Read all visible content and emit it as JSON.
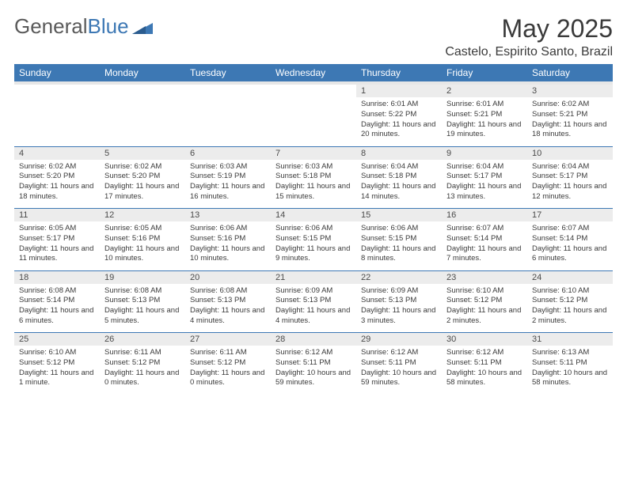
{
  "logo": {
    "text_gray": "General",
    "text_blue": "Blue"
  },
  "title": "May 2025",
  "location": "Castelo, Espirito Santo, Brazil",
  "colors": {
    "header_bg": "#3d78b4",
    "header_text": "#ffffff",
    "daynum_bg": "#ececec",
    "border": "#3d78b4",
    "body_text": "#3a3a3a",
    "logo_gray": "#5a5a5a",
    "logo_blue": "#3d78b4",
    "page_bg": "#ffffff"
  },
  "daynames": [
    "Sunday",
    "Monday",
    "Tuesday",
    "Wednesday",
    "Thursday",
    "Friday",
    "Saturday"
  ],
  "weeks": [
    {
      "nums": [
        "",
        "",
        "",
        "",
        "1",
        "2",
        "3"
      ],
      "details": [
        "",
        "",
        "",
        "",
        "Sunrise: 6:01 AM\nSunset: 5:22 PM\nDaylight: 11 hours and 20 minutes.",
        "Sunrise: 6:01 AM\nSunset: 5:21 PM\nDaylight: 11 hours and 19 minutes.",
        "Sunrise: 6:02 AM\nSunset: 5:21 PM\nDaylight: 11 hours and 18 minutes."
      ]
    },
    {
      "nums": [
        "4",
        "5",
        "6",
        "7",
        "8",
        "9",
        "10"
      ],
      "details": [
        "Sunrise: 6:02 AM\nSunset: 5:20 PM\nDaylight: 11 hours and 18 minutes.",
        "Sunrise: 6:02 AM\nSunset: 5:20 PM\nDaylight: 11 hours and 17 minutes.",
        "Sunrise: 6:03 AM\nSunset: 5:19 PM\nDaylight: 11 hours and 16 minutes.",
        "Sunrise: 6:03 AM\nSunset: 5:18 PM\nDaylight: 11 hours and 15 minutes.",
        "Sunrise: 6:04 AM\nSunset: 5:18 PM\nDaylight: 11 hours and 14 minutes.",
        "Sunrise: 6:04 AM\nSunset: 5:17 PM\nDaylight: 11 hours and 13 minutes.",
        "Sunrise: 6:04 AM\nSunset: 5:17 PM\nDaylight: 11 hours and 12 minutes."
      ]
    },
    {
      "nums": [
        "11",
        "12",
        "13",
        "14",
        "15",
        "16",
        "17"
      ],
      "details": [
        "Sunrise: 6:05 AM\nSunset: 5:17 PM\nDaylight: 11 hours and 11 minutes.",
        "Sunrise: 6:05 AM\nSunset: 5:16 PM\nDaylight: 11 hours and 10 minutes.",
        "Sunrise: 6:06 AM\nSunset: 5:16 PM\nDaylight: 11 hours and 10 minutes.",
        "Sunrise: 6:06 AM\nSunset: 5:15 PM\nDaylight: 11 hours and 9 minutes.",
        "Sunrise: 6:06 AM\nSunset: 5:15 PM\nDaylight: 11 hours and 8 minutes.",
        "Sunrise: 6:07 AM\nSunset: 5:14 PM\nDaylight: 11 hours and 7 minutes.",
        "Sunrise: 6:07 AM\nSunset: 5:14 PM\nDaylight: 11 hours and 6 minutes."
      ]
    },
    {
      "nums": [
        "18",
        "19",
        "20",
        "21",
        "22",
        "23",
        "24"
      ],
      "details": [
        "Sunrise: 6:08 AM\nSunset: 5:14 PM\nDaylight: 11 hours and 6 minutes.",
        "Sunrise: 6:08 AM\nSunset: 5:13 PM\nDaylight: 11 hours and 5 minutes.",
        "Sunrise: 6:08 AM\nSunset: 5:13 PM\nDaylight: 11 hours and 4 minutes.",
        "Sunrise: 6:09 AM\nSunset: 5:13 PM\nDaylight: 11 hours and 4 minutes.",
        "Sunrise: 6:09 AM\nSunset: 5:13 PM\nDaylight: 11 hours and 3 minutes.",
        "Sunrise: 6:10 AM\nSunset: 5:12 PM\nDaylight: 11 hours and 2 minutes.",
        "Sunrise: 6:10 AM\nSunset: 5:12 PM\nDaylight: 11 hours and 2 minutes."
      ]
    },
    {
      "nums": [
        "25",
        "26",
        "27",
        "28",
        "29",
        "30",
        "31"
      ],
      "details": [
        "Sunrise: 6:10 AM\nSunset: 5:12 PM\nDaylight: 11 hours and 1 minute.",
        "Sunrise: 6:11 AM\nSunset: 5:12 PM\nDaylight: 11 hours and 0 minutes.",
        "Sunrise: 6:11 AM\nSunset: 5:12 PM\nDaylight: 11 hours and 0 minutes.",
        "Sunrise: 6:12 AM\nSunset: 5:11 PM\nDaylight: 10 hours and 59 minutes.",
        "Sunrise: 6:12 AM\nSunset: 5:11 PM\nDaylight: 10 hours and 59 minutes.",
        "Sunrise: 6:12 AM\nSunset: 5:11 PM\nDaylight: 10 hours and 58 minutes.",
        "Sunrise: 6:13 AM\nSunset: 5:11 PM\nDaylight: 10 hours and 58 minutes."
      ]
    }
  ]
}
